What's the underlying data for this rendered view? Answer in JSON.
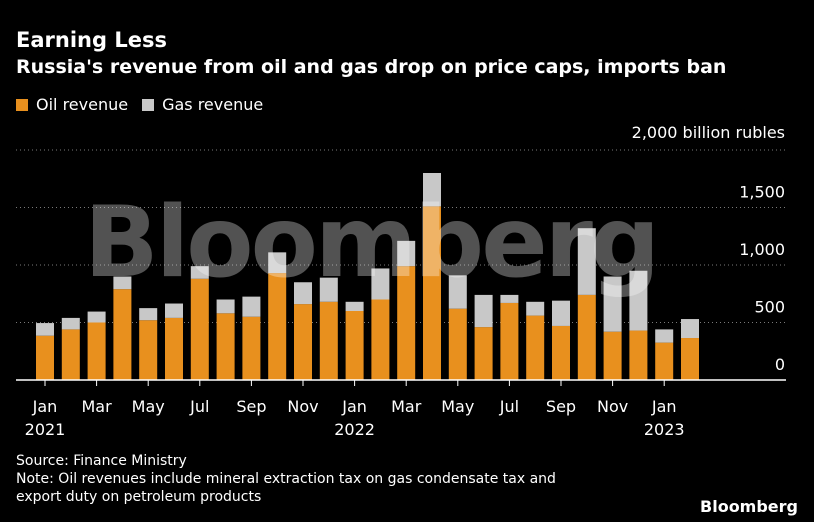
{
  "header": {
    "title": "Earning Less",
    "subtitle": "Russia's revenue from oil and gas drop on price caps, imports ban"
  },
  "legend": {
    "oil_label": "Oil revenue",
    "gas_label": "Gas revenue"
  },
  "colors": {
    "oil": "#e8901e",
    "gas": "#c8c8c8",
    "background": "#000000",
    "grid": "#7a7a7a"
  },
  "watermark": "Bloomberg",
  "footer": {
    "source": "Source: Finance Ministry",
    "note_line1": "Note: Oil revenues include mineral extraction tax on gas condensate tax and",
    "note_line2": "export duty on petroleum products"
  },
  "brand": "Bloomberg",
  "chart_data": {
    "type": "bar",
    "stacked": true,
    "unit_label": "2,000 billion rubles",
    "ylim": [
      0,
      2000
    ],
    "yticks": [
      0,
      500,
      1000,
      1500,
      2000
    ],
    "ytick_labels": [
      "0",
      "500",
      "1,000",
      "1,500",
      ""
    ],
    "grid": true,
    "legend_position": "top-left",
    "x_tick_labels": [
      {
        "index": 0,
        "month": "Jan",
        "year": "2021"
      },
      {
        "index": 2,
        "month": "Mar",
        "year": ""
      },
      {
        "index": 4,
        "month": "May",
        "year": ""
      },
      {
        "index": 6,
        "month": "Jul",
        "year": ""
      },
      {
        "index": 8,
        "month": "Sep",
        "year": ""
      },
      {
        "index": 10,
        "month": "Nov",
        "year": ""
      },
      {
        "index": 12,
        "month": "Jan",
        "year": "2022"
      },
      {
        "index": 14,
        "month": "Mar",
        "year": ""
      },
      {
        "index": 16,
        "month": "May",
        "year": ""
      },
      {
        "index": 18,
        "month": "Jul",
        "year": ""
      },
      {
        "index": 20,
        "month": "Sep",
        "year": ""
      },
      {
        "index": 22,
        "month": "Nov",
        "year": ""
      },
      {
        "index": 24,
        "month": "Jan",
        "year": "2023"
      }
    ],
    "categories": [
      "2021-01",
      "2021-02",
      "2021-03",
      "2021-04",
      "2021-05",
      "2021-06",
      "2021-07",
      "2021-08",
      "2021-09",
      "2021-10",
      "2021-11",
      "2021-12",
      "2022-01",
      "2022-02",
      "2022-03",
      "2022-04",
      "2022-05",
      "2022-06",
      "2022-07",
      "2022-08",
      "2022-09",
      "2022-10",
      "2022-11",
      "2022-12",
      "2023-01",
      "2023-02"
    ],
    "series": [
      {
        "name": "Oil revenue",
        "values": [
          385,
          440,
          500,
          790,
          520,
          540,
          880,
          580,
          550,
          930,
          660,
          680,
          600,
          700,
          990,
          1510,
          620,
          460,
          670,
          560,
          470,
          740,
          420,
          430,
          325,
          365
        ]
      },
      {
        "name": "Gas revenue",
        "values": [
          110,
          100,
          95,
          110,
          105,
          125,
          110,
          120,
          175,
          180,
          190,
          210,
          80,
          270,
          220,
          290,
          290,
          280,
          70,
          120,
          220,
          580,
          480,
          520,
          115,
          165
        ]
      }
    ]
  }
}
